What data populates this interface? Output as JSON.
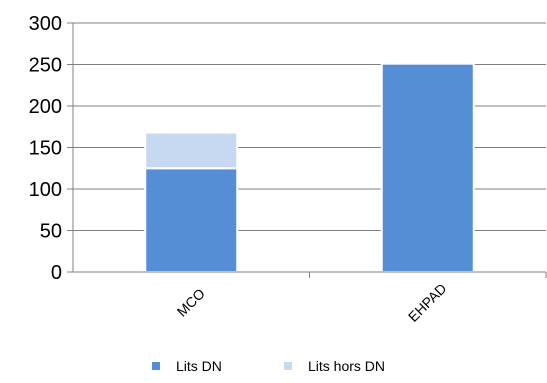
{
  "chart_data": {
    "type": "bar",
    "stacked": true,
    "categories": [
      "MCO",
      "EHPAD"
    ],
    "series": [
      {
        "name": "Lits DN",
        "values": [
          125,
          251
        ],
        "color": "#558ED5"
      },
      {
        "name": "Lits hors DN",
        "values": [
          43,
          0
        ],
        "color": "#C6D9F1"
      }
    ],
    "ylim": [
      0,
      300
    ],
    "yticks": [
      0,
      50,
      100,
      150,
      200,
      250,
      300
    ],
    "grid": true,
    "legend_position": "bottom"
  }
}
